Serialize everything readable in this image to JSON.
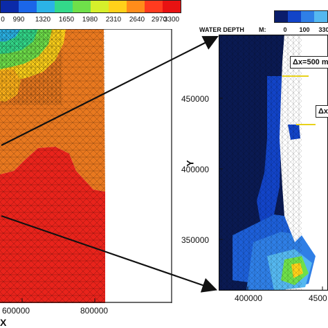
{
  "left_colorbar": {
    "labels": [
      "0",
      "990",
      "1320",
      "1650",
      "1980",
      "2310",
      "2640",
      "2970",
      "3300"
    ],
    "colors": [
      "#0b2aa8",
      "#1b66e8",
      "#2bb3e6",
      "#33d98a",
      "#6fe04a",
      "#d6ef2b",
      "#ffd11a",
      "#ff8c1a",
      "#ff3b1f",
      "#e81212"
    ]
  },
  "right_colorbar": {
    "title": "WATER DEPTH",
    "unit": "M:",
    "labels": [
      "0",
      "100",
      "330"
    ],
    "colors": [
      "#0a1d6b",
      "#1244c8",
      "#2f7fe6",
      "#55b8f0"
    ]
  },
  "left_map": {
    "x_label": "X",
    "x_ticks": [
      "600000",
      "800000"
    ]
  },
  "right_map": {
    "y_label": "Y",
    "y_ticks": [
      "450000",
      "400000",
      "350000"
    ],
    "x_ticks": [
      "400000",
      "4500"
    ],
    "annotations": [
      "Δx=500 m",
      "Δx"
    ]
  },
  "colors": {
    "mesh_red": "#e8231b",
    "mesh_orange": "#e8781f",
    "deep_navy": "#0a1a52",
    "frame": "#111111"
  }
}
